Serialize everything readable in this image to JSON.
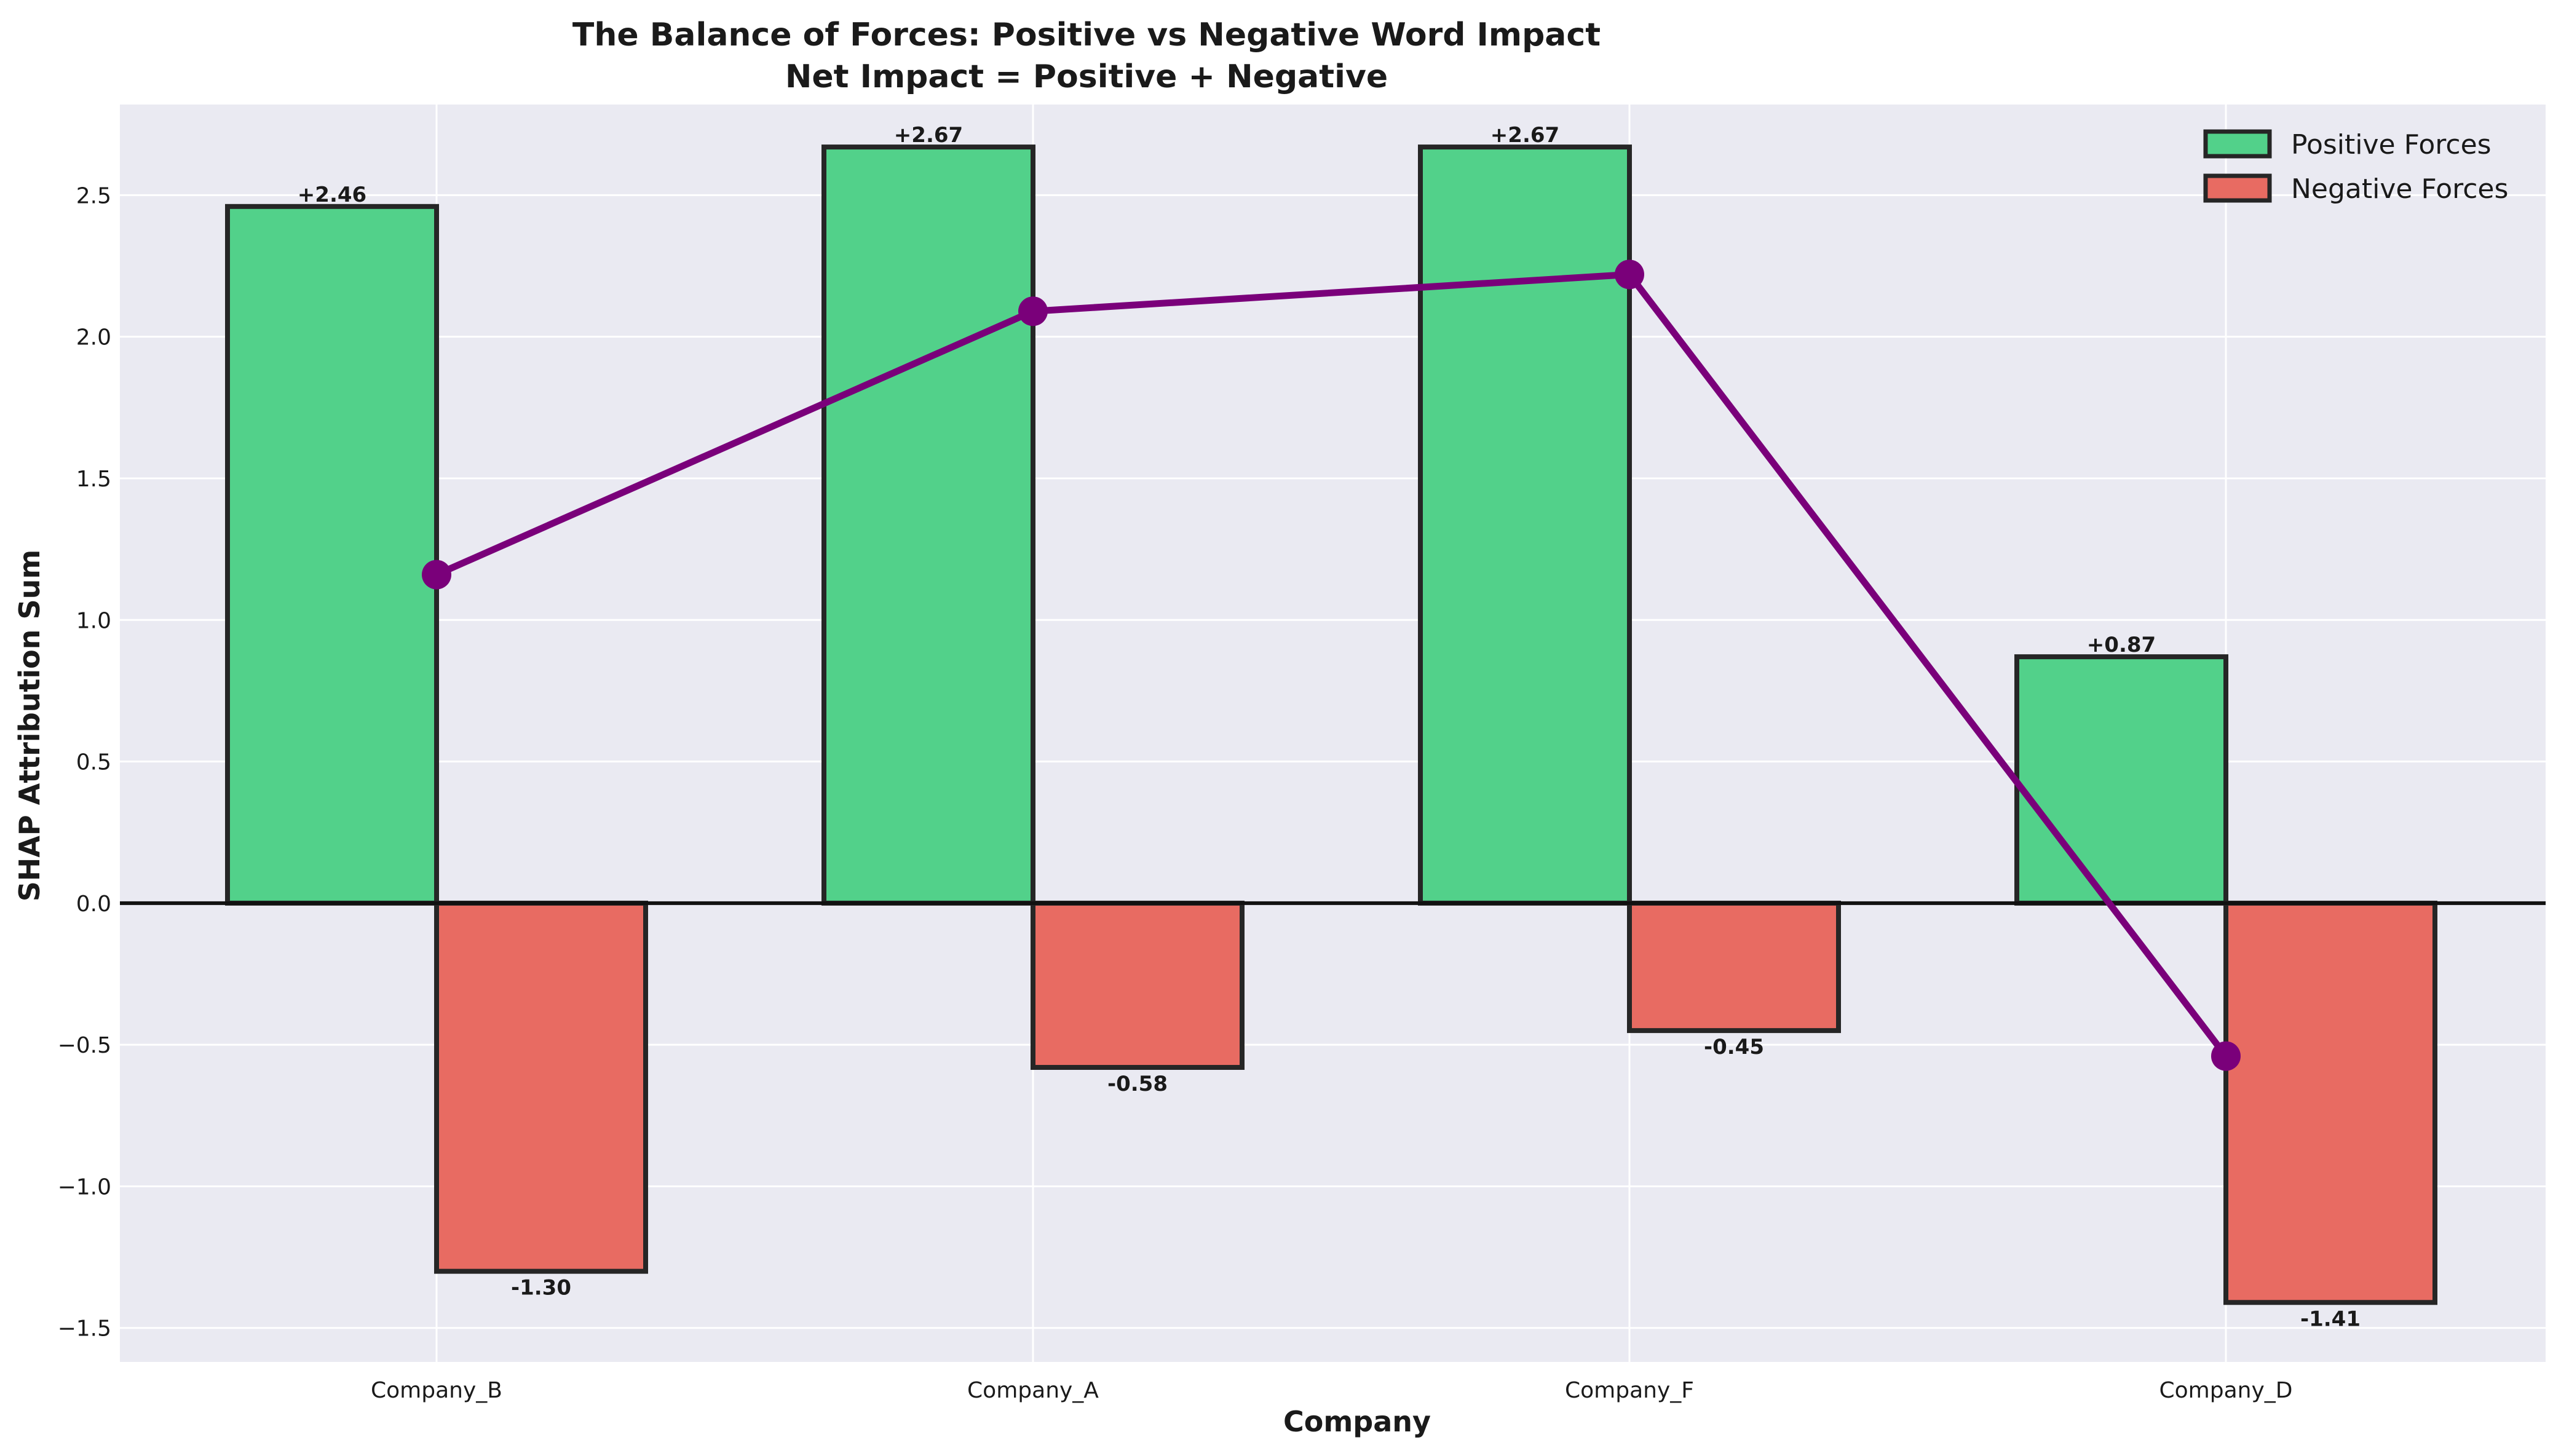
{
  "chart_data": {
    "type": "bar",
    "title": "The Balance of Forces: Positive vs Negative Word Impact",
    "subtitle": "Net Impact = Positive + Negative",
    "xlabel": "Company",
    "ylabel": "SHAP Attribution Sum",
    "categories": [
      "Company_B",
      "Company_A",
      "Company_F",
      "Company_D"
    ],
    "series": [
      {
        "name": "Positive Forces",
        "kind": "bar",
        "color": "#52d18a",
        "values": [
          2.46,
          2.67,
          2.67,
          0.87
        ],
        "labels": [
          "+2.46",
          "+2.67",
          "+2.67",
          "+0.87"
        ]
      },
      {
        "name": "Negative Forces",
        "kind": "bar",
        "color": "#e86b62",
        "values": [
          -1.3,
          -0.58,
          -0.45,
          -1.41
        ],
        "labels": [
          "-1.30",
          "-0.58",
          "-0.45",
          "-1.41"
        ]
      },
      {
        "kind": "line",
        "color": "#7a007a",
        "values": [
          1.16,
          2.09,
          2.22,
          -0.54
        ]
      }
    ],
    "ylim": [
      -1.62,
      2.82
    ],
    "yticks": [
      -1.5,
      -1.0,
      -0.5,
      0.0,
      0.5,
      1.0,
      1.5,
      2.0,
      2.5
    ],
    "ytick_labels": [
      "−1.5",
      "−1.0",
      "−0.5",
      "0.0",
      "0.5",
      "1.0",
      "1.5",
      "2.0",
      "2.5"
    ],
    "grid": true,
    "legend_position": "top-right",
    "background_color": "#eaeaf2",
    "bar_edge_color": "#262626"
  }
}
